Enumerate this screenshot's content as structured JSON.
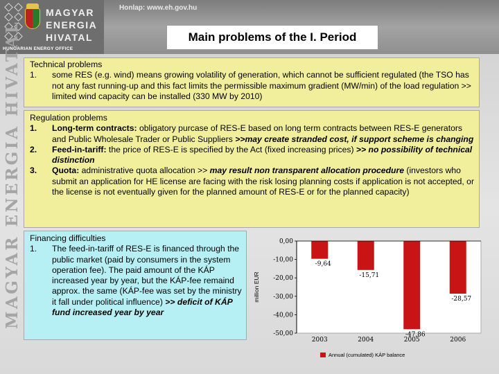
{
  "header": {
    "logo_lines": [
      "MAGYAR",
      "ENERGIA",
      "HIVATAL"
    ],
    "logo_subtitle": "HUNGARIAN ENERGY OFFICE",
    "homepage": "Honlap: www.eh.gov.hu",
    "slide_title": "Main problems of the I. Period"
  },
  "side_text": "MAGYAR ENERGIA HIVATAL",
  "technical": {
    "heading": "Technical problems",
    "items": [
      {
        "num": "1.",
        "text": "some RES (e.g. wind) means growing volatility of generation, which cannot be sufficient regulated (the TSO has not any fast running-up and this fact limits the permissible maximum gradient (MW/min) of the load regulation >> limited wind capacity can be installed (330 MW by 2010)"
      }
    ]
  },
  "regulation": {
    "heading": "Regulation problems",
    "items": [
      {
        "num": "1.",
        "lead": "Long-term contracts:",
        "text": " obligatory purcase of RES-E based on long term contracts between RES-E generators and Public Wholesale Trader or Public Suppliers ",
        "emph": ">>may create stranded cost, if support scheme is changing"
      },
      {
        "num": "2.",
        "lead": "Feed-in-tariff:",
        "text": " the price of RES-E is specified by the Act (fixed increasing prices) ",
        "emph": ">> no possibility of technical distinction"
      },
      {
        "num": "3.",
        "lead": "Quota:",
        "text": " administrative quota allocation >> ",
        "emph": "may result non transparent allocation procedure",
        "tail": " (investors who submit an application for HE license are facing with the risk losing planning costs if application is not accepted, or the license is not eventually given for the planned amount of RES-E or for the planned capacity)"
      }
    ]
  },
  "financing": {
    "heading": "Financing difficulties",
    "items": [
      {
        "num": "1.",
        "text": "The feed-in-tariff of RES-E is financed through the public market (paid by consumers in the system operation fee). The paid amount of the KÁP increased year by year, but the KÁP-fee remaind approx. the same (KÁP-fee  was set by the ministry it fall under political influence) ",
        "emph": ">> deficit of KÁP fund increased year by year"
      }
    ]
  },
  "chart_data": {
    "type": "bar",
    "categories": [
      "2003",
      "2004",
      "2005",
      "2006"
    ],
    "series": [
      {
        "name": "Annual (cumulated) KÁP balance",
        "values": [
          -9.64,
          -15.71,
          -47.86,
          -28.57
        ],
        "color": "#c81414"
      }
    ],
    "data_labels": [
      "-9,64",
      "-15,71",
      "-47,86",
      "-28,57"
    ],
    "ylabel": "million EUR",
    "yticks": [
      "0,00",
      "-10,00",
      "-20,00",
      "-30,00",
      "-40,00",
      "-50,00"
    ],
    "ylim": [
      -50,
      0
    ],
    "grid": false,
    "legend": "bottom"
  }
}
